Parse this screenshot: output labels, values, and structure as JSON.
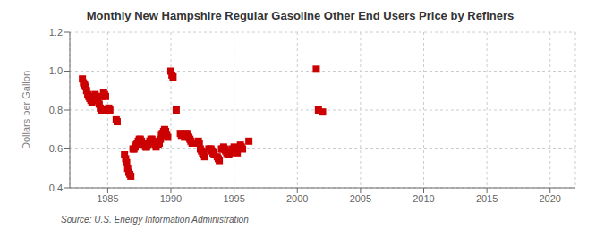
{
  "chart_data": {
    "type": "scatter",
    "title": "Monthly New Hampshire Regular Gasoline Other End Users Price by Refiners",
    "ylabel": "Dollars per Gallon",
    "annotation": "Source: U.S. Energy Information Administration",
    "color": "#cc0000",
    "marker": "square",
    "grid": true,
    "xlim": [
      1982,
      2022
    ],
    "ylim": [
      0.4,
      1.2
    ],
    "xticks": [
      1985,
      1990,
      1995,
      2000,
      2005,
      2010,
      2015,
      2020
    ],
    "yticks": [
      0.4,
      0.6,
      0.8,
      {
        "value": 1.0,
        "label": "1.0"
      },
      1.2
    ],
    "x": [
      1983.0,
      1983.08,
      1983.17,
      1983.25,
      1983.33,
      1983.42,
      1983.5,
      1983.58,
      1983.67,
      1983.75,
      1984.0,
      1984.08,
      1984.17,
      1984.25,
      1984.33,
      1984.42,
      1984.5,
      1984.58,
      1984.67,
      1984.75,
      1984.83,
      1985.0,
      1985.08,
      1985.17,
      1985.67,
      1985.75,
      1986.33,
      1986.42,
      1986.5,
      1986.58,
      1986.67,
      1986.75,
      1986.83,
      1987.0,
      1987.08,
      1987.17,
      1987.25,
      1987.33,
      1987.42,
      1987.5,
      1987.58,
      1987.67,
      1987.75,
      1987.83,
      1988.0,
      1988.08,
      1988.17,
      1988.25,
      1988.33,
      1988.42,
      1988.5,
      1988.58,
      1988.67,
      1988.75,
      1988.83,
      1989.0,
      1989.08,
      1989.17,
      1989.25,
      1989.33,
      1989.42,
      1989.5,
      1989.58,
      1989.67,
      1989.75,
      1990.0,
      1990.08,
      1990.17,
      1990.42,
      1990.75,
      1990.83,
      1991.08,
      1991.17,
      1991.25,
      1991.33,
      1991.42,
      1991.5,
      1991.58,
      1991.67,
      1992.08,
      1992.17,
      1992.25,
      1992.33,
      1992.42,
      1992.5,
      1992.58,
      1992.67,
      1993.0,
      1993.08,
      1993.17,
      1993.25,
      1993.33,
      1993.42,
      1993.67,
      1993.75,
      1993.83,
      1994.0,
      1994.08,
      1994.17,
      1994.25,
      1994.33,
      1994.42,
      1994.5,
      1994.58,
      1994.67,
      1994.83,
      1995.0,
      1995.08,
      1995.17,
      1995.25,
      1995.5,
      1995.58,
      1995.67,
      1996.17,
      2001.5,
      2001.67,
      2002.0
    ],
    "values": [
      0.96,
      0.94,
      0.93,
      0.92,
      0.9,
      0.88,
      0.87,
      0.86,
      0.85,
      0.84,
      0.88,
      0.87,
      0.86,
      0.85,
      0.83,
      0.81,
      0.8,
      0.87,
      0.89,
      0.88,
      0.87,
      0.8,
      0.81,
      0.8,
      0.75,
      0.74,
      0.57,
      0.55,
      0.53,
      0.5,
      0.48,
      0.47,
      0.46,
      0.6,
      0.6,
      0.61,
      0.62,
      0.63,
      0.64,
      0.65,
      0.65,
      0.64,
      0.63,
      0.62,
      0.61,
      0.61,
      0.62,
      0.63,
      0.64,
      0.65,
      0.65,
      0.64,
      0.63,
      0.62,
      0.61,
      0.62,
      0.63,
      0.65,
      0.67,
      0.68,
      0.69,
      0.7,
      0.69,
      0.67,
      0.66,
      1.0,
      0.98,
      0.97,
      0.8,
      0.68,
      0.67,
      0.66,
      0.67,
      0.68,
      0.67,
      0.66,
      0.65,
      0.64,
      0.63,
      0.63,
      0.64,
      0.63,
      0.6,
      0.59,
      0.58,
      0.57,
      0.56,
      0.6,
      0.6,
      0.6,
      0.59,
      0.58,
      0.57,
      0.56,
      0.55,
      0.54,
      0.6,
      0.6,
      0.61,
      0.6,
      0.59,
      0.58,
      0.57,
      0.57,
      0.58,
      0.6,
      0.61,
      0.6,
      0.59,
      0.58,
      0.62,
      0.61,
      0.6,
      0.64,
      1.01,
      0.8,
      0.79
    ]
  }
}
